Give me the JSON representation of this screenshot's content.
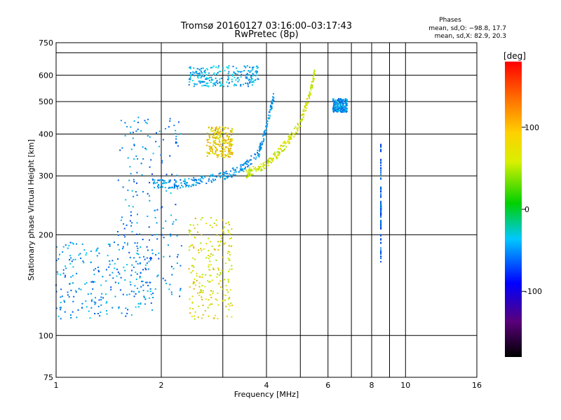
{
  "chart_data": {
    "type": "scatter",
    "title": "Tromsø 20160127 03:16:00–03:17:43",
    "subtitle": "RwPretec (8p)",
    "xlabel": "Frequency [MHz]",
    "ylabel": "Stationary phase Virtual Height [km]",
    "x_scale": "log",
    "y_scale": "log",
    "xlim": [
      1,
      16
    ],
    "ylim": [
      75,
      750
    ],
    "x_ticks": [
      1,
      2,
      4,
      6,
      8,
      10,
      16
    ],
    "x_minor_lines": [
      3,
      5,
      7,
      9
    ],
    "y_ticks": [
      75,
      100,
      200,
      300,
      400,
      500,
      600,
      750
    ],
    "y_extra_lines": [
      700
    ],
    "grid": true,
    "phase_box": {
      "title": "Phases",
      "line_o": "mean, sd,O: −98.8, 17.7",
      "line_x": "mean, sd,X:  82.9, 20.3"
    },
    "colorbar": {
      "label": "[deg]",
      "min": -180,
      "max": 180,
      "ticks": [
        100,
        0,
        -100
      ],
      "colormap": "rainbow"
    },
    "trace_groups": [
      {
        "name": "O-mode E/F1 low echoes",
        "x_range": [
          1.0,
          1.9
        ],
        "y_range": [
          112,
          190
        ],
        "phase": -100
      },
      {
        "name": "O-mode rising trace",
        "x_range": [
          1.5,
          2.3
        ],
        "y_range": [
          130,
          450
        ],
        "phase": -105
      },
      {
        "name": "O-mode F-region trace",
        "x": [
          1.9,
          2.2,
          2.5,
          3.0,
          3.4,
          3.8,
          4.0,
          4.2
        ],
        "y": [
          285,
          282,
          288,
          298,
          315,
          350,
          420,
          520
        ],
        "phase": -100
      },
      {
        "name": "O-mode top cluster",
        "x_range": [
          2.4,
          3.8
        ],
        "y_range": [
          555,
          640
        ],
        "phase": -90
      },
      {
        "name": "X-mode low cluster",
        "x_range": [
          2.4,
          3.2
        ],
        "y_range": [
          112,
          225
        ],
        "phase": 95
      },
      {
        "name": "X-mode F-region trace",
        "x": [
          3.5,
          3.8,
          4.2,
          4.6,
          5.0,
          5.3,
          5.5
        ],
        "y": [
          305,
          315,
          340,
          380,
          430,
          520,
          610
        ],
        "phase": 90
      },
      {
        "name": "X-mode mid cluster",
        "x_range": [
          2.7,
          3.2
        ],
        "y_range": [
          340,
          420
        ],
        "phase": 105
      },
      {
        "name": "O-mode cluster near 6.5 MHz",
        "x_range": [
          6.2,
          6.8
        ],
        "y_range": [
          465,
          510
        ],
        "phase": -100
      },
      {
        "name": "scattered points near 8.5 MHz",
        "x": [
          8.5,
          8.5,
          8.5,
          8.5
        ],
        "y": [
          365,
          245,
          235,
          170
        ],
        "phase": -120
      }
    ]
  }
}
